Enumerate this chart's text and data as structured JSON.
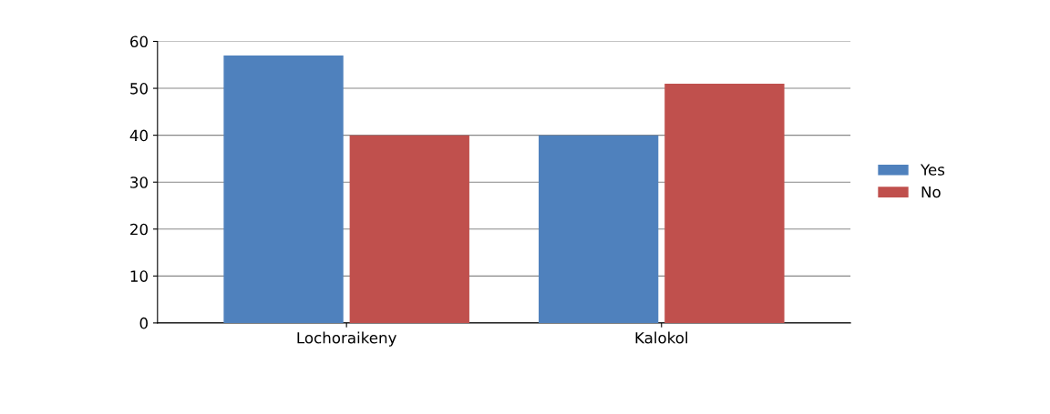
{
  "chart_data": {
    "type": "bar",
    "categories": [
      "Lochoraikeny",
      "Kalokol"
    ],
    "series": [
      {
        "name": "Yes",
        "color": "#4f81bd",
        "values": [
          57,
          40
        ]
      },
      {
        "name": "No",
        "color": "#c0504d",
        "values": [
          40,
          51
        ]
      }
    ],
    "ylim": [
      0,
      60
    ],
    "yticks": [
      0,
      10,
      20,
      30,
      40,
      50,
      60
    ],
    "grid": "y",
    "legend": "right"
  }
}
